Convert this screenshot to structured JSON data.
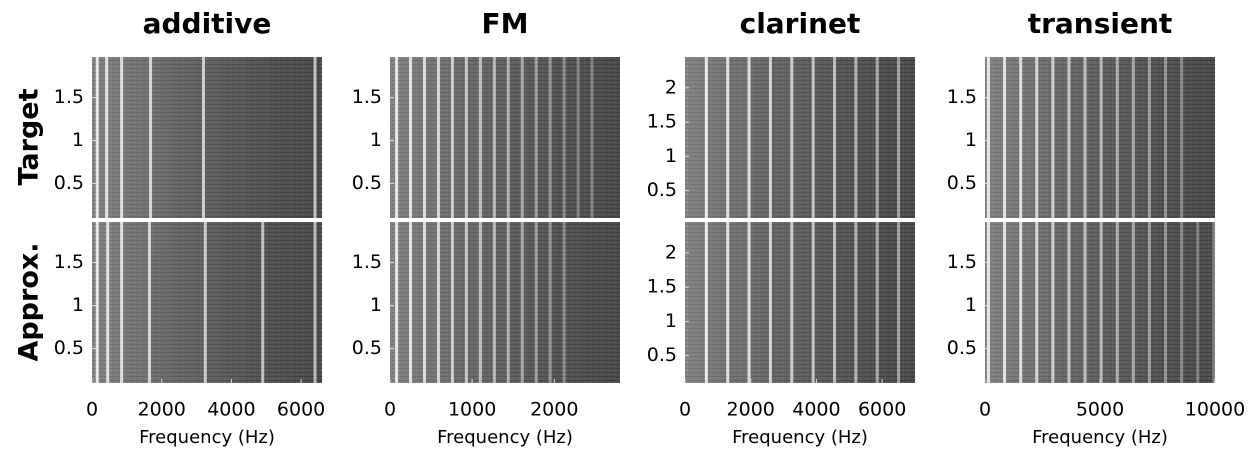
{
  "row_labels": [
    "Target",
    "Approx."
  ],
  "chart_data": [
    {
      "type": "spectrogram",
      "title": "additive",
      "xlabel": "Frequency (Hz)",
      "xlim": [
        0,
        6600
      ],
      "xticks": [
        0,
        2000,
        4000,
        6000
      ],
      "ylim": [
        0.1,
        1.97
      ],
      "yticks": [
        0.5,
        1,
        1.5
      ],
      "panels": [
        {
          "lines": [
            150,
            420,
            850,
            1680,
            3200,
            6400
          ]
        },
        {
          "lines": [
            150,
            450,
            850,
            1650,
            3250,
            4900,
            6400
          ]
        }
      ]
    },
    {
      "type": "spectrogram",
      "title": "FM",
      "xlabel": "Frequency (Hz)",
      "xlim": [
        0,
        2800
      ],
      "xticks": [
        0,
        1000,
        2000
      ],
      "ylim": [
        0.1,
        1.97
      ],
      "yticks": [
        0.5,
        1,
        1.5
      ],
      "panels": [
        {
          "lines": [
            80,
            250,
            420,
            590,
            760,
            930,
            1100,
            1270,
            1440,
            1610,
            1780,
            1950,
            2120,
            2290,
            2460
          ]
        },
        {
          "lines": [
            80,
            250,
            420,
            590,
            760,
            930,
            1100,
            1270,
            1440,
            1610,
            1780,
            1950,
            2120
          ]
        }
      ]
    },
    {
      "type": "spectrogram",
      "title": "clarinet",
      "xlabel": "Frequency (Hz)",
      "xlim": [
        0,
        7000
      ],
      "xticks": [
        0,
        2000,
        4000,
        6000
      ],
      "ylim": [
        0.1,
        2.45
      ],
      "yticks": [
        0.5,
        1,
        1.5,
        2
      ],
      "panels": [
        {
          "lines": [
            650,
            1300,
            1950,
            2600,
            3250,
            3900,
            4550,
            5200,
            5850,
            6500
          ]
        },
        {
          "lines": [
            650,
            1300,
            1950,
            2600,
            3250,
            3900,
            4550,
            5200,
            5850,
            6500
          ]
        }
      ]
    },
    {
      "type": "spectrogram",
      "title": "transient",
      "xlabel": "Frequency (Hz)",
      "xlim": [
        0,
        10000
      ],
      "xticks": [
        0,
        5000,
        10000
      ],
      "ylim": [
        0.1,
        1.97
      ],
      "yticks": [
        0.5,
        1,
        1.5
      ],
      "panels": [
        {
          "lines": [
            150,
            850,
            1550,
            2250,
            2950,
            3650,
            4350,
            5050,
            5750,
            6450,
            7150,
            7850,
            8550
          ]
        },
        {
          "lines": [
            150,
            850,
            1550,
            2250,
            2950,
            3650,
            4350,
            5050,
            5750,
            6450,
            7150,
            7850,
            8550,
            9250,
            9950
          ]
        }
      ]
    }
  ]
}
